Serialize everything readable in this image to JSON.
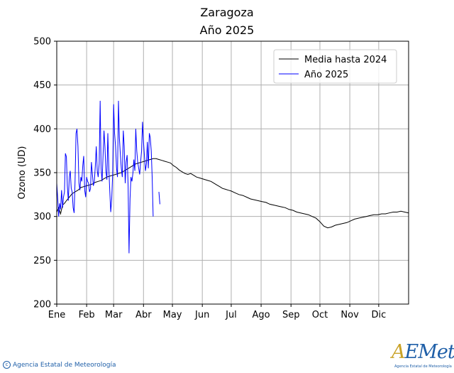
{
  "chart_data": {
    "type": "line",
    "title": "Zaragoza",
    "subtitle": "Año 2025",
    "xlabel": "",
    "ylabel": "Ozono (UD)",
    "ylim": [
      200,
      500
    ],
    "yticks": [
      200,
      250,
      300,
      350,
      400,
      450,
      500
    ],
    "xlim": [
      1,
      366
    ],
    "xticks": [
      {
        "day": 1,
        "label": "Ene"
      },
      {
        "day": 32,
        "label": "Feb"
      },
      {
        "day": 60,
        "label": "Mar"
      },
      {
        "day": 91,
        "label": "Abr"
      },
      {
        "day": 121,
        "label": "May"
      },
      {
        "day": 152,
        "label": "Jun"
      },
      {
        "day": 182,
        "label": "Jul"
      },
      {
        "day": 213,
        "label": "Ago"
      },
      {
        "day": 244,
        "label": "Sep"
      },
      {
        "day": 274,
        "label": "Oct"
      },
      {
        "day": 305,
        "label": "Nov"
      },
      {
        "day": 335,
        "label": "Dic"
      }
    ],
    "grid": true,
    "legend_position": "top-right",
    "series": [
      {
        "name": "Media hasta 2024",
        "color": "#000000",
        "x": [
          1,
          3,
          5,
          7,
          9,
          11,
          14,
          17,
          20,
          23,
          26,
          29,
          32,
          35,
          38,
          41,
          44,
          47,
          50,
          53,
          56,
          59,
          62,
          65,
          68,
          71,
          74,
          77,
          80,
          83,
          86,
          89,
          92,
          95,
          98,
          101,
          104,
          107,
          110,
          113,
          116,
          119,
          122,
          125,
          128,
          131,
          134,
          137,
          140,
          143,
          146,
          149,
          152,
          155,
          158,
          161,
          164,
          167,
          170,
          173,
          176,
          179,
          182,
          186,
          190,
          194,
          198,
          202,
          206,
          210,
          214,
          218,
          222,
          226,
          230,
          234,
          238,
          242,
          246,
          250,
          254,
          258,
          262,
          266,
          270,
          274,
          278,
          282,
          286,
          290,
          294,
          298,
          302,
          306,
          310,
          314,
          318,
          322,
          326,
          330,
          334,
          338,
          342,
          346,
          350,
          354,
          358,
          362,
          366
        ],
        "y": [
          305,
          310,
          303,
          313,
          315,
          318,
          322,
          326,
          328,
          330,
          333,
          334,
          335,
          336,
          337,
          339,
          340,
          341,
          343,
          345,
          346,
          347,
          348,
          349,
          350,
          352,
          354,
          356,
          358,
          360,
          361,
          362,
          363,
          364,
          365,
          366,
          366,
          365,
          364,
          363,
          362,
          361,
          358,
          356,
          353,
          351,
          349,
          348,
          349,
          347,
          345,
          344,
          343,
          342,
          341,
          340,
          338,
          336,
          334,
          332,
          331,
          330,
          329,
          327,
          325,
          324,
          322,
          320,
          319,
          318,
          317,
          316,
          314,
          313,
          312,
          311,
          310,
          308,
          307,
          305,
          304,
          303,
          302,
          300,
          298,
          294,
          289,
          287,
          288,
          290,
          291,
          292,
          293,
          295,
          297,
          298,
          299,
          300,
          301,
          302,
          302,
          303,
          303,
          304,
          305,
          305,
          306,
          305,
          304
        ]
      },
      {
        "name": "Año 2025",
        "color": "#0000ff",
        "x": [
          1,
          2,
          3,
          4,
          5,
          6,
          7,
          8,
          9,
          10,
          11,
          12,
          13,
          14,
          15,
          16,
          17,
          18,
          19,
          20,
          21,
          22,
          23,
          24,
          25,
          26,
          27,
          28,
          29,
          30,
          31,
          32,
          33,
          34,
          35,
          36,
          37,
          38,
          39,
          40,
          41,
          42,
          43,
          44,
          45,
          46,
          47,
          48,
          49,
          50,
          51,
          52,
          53,
          54,
          55,
          56,
          57,
          58,
          59,
          60,
          61,
          62,
          63,
          64,
          65,
          66,
          67,
          68,
          69,
          70,
          71,
          72,
          73,
          74,
          75,
          76,
          77,
          78,
          79,
          80,
          81,
          82,
          83,
          84,
          85,
          86,
          87,
          88,
          89,
          90,
          91,
          92,
          93,
          94,
          95,
          96,
          97,
          98,
          99,
          100,
          101,
          102,
          103,
          104,
          105,
          106,
          107,
          108,
          109,
          110,
          111,
          112,
          113,
          114,
          115,
          116,
          117
        ],
        "y": [
          338,
          320,
          300,
          315,
          308,
          330,
          310,
          322,
          328,
          372,
          368,
          335,
          318,
          345,
          352,
          332,
          328,
          310,
          304,
          340,
          395,
          400,
          380,
          338,
          330,
          345,
          340,
          358,
          369,
          330,
          322,
          345,
          340,
          338,
          328,
          332,
          362,
          348,
          335,
          340,
          358,
          380,
          352,
          345,
          360,
          432,
          355,
          340,
          368,
          398,
          380,
          352,
          342,
          395,
          355,
          330,
          305,
          320,
          348,
          428,
          395,
          380,
          355,
          345,
          432,
          390,
          370,
          355,
          345,
          398,
          380,
          338,
          362,
          370,
          335,
          258,
          320,
          345,
          340,
          350,
          365,
          352,
          400,
          375,
          362,
          355,
          348,
          362,
          375,
          408,
          385,
          368,
          352,
          360,
          385,
          355,
          395,
          390,
          375,
          345,
          300,
          null,
          null,
          null,
          null,
          null,
          328,
          314,
          null,
          null,
          null,
          null,
          null,
          null,
          null,
          null,
          null
        ]
      }
    ]
  },
  "footer": {
    "agency": "Agencia Estatal de Meteorología",
    "logo_word": "AEMet",
    "logo_sub": "Agencia Estatal de Meteorología"
  }
}
